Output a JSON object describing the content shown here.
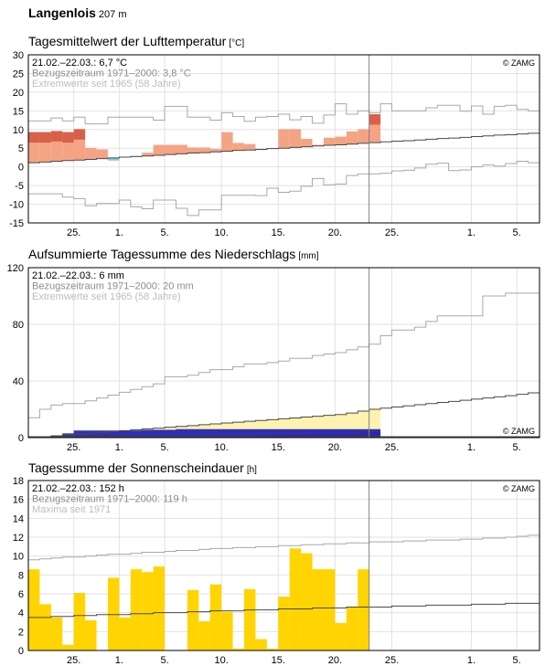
{
  "station": {
    "name": "Langenlois",
    "altitude": "207 m"
  },
  "colors": {
    "frame": "#000000",
    "grid": "#e2e2e2",
    "today": "#808080",
    "extreme": "#a8a8a8",
    "normal": "#4a4a4a",
    "temp_above": "#f4a484",
    "temp_above_strong": "#d8604a",
    "temp_below": "#8cc4dc",
    "precip_norm_fill": "#fdf2b0",
    "precip_norm_line": "#c8b45a",
    "precip_orange": "#f7a040",
    "precip_blue": "#1a1ab4",
    "sun_fill": "#ffd400",
    "legend_dark": "#000000",
    "legend_gray": "#8c8c8c",
    "legend_light": "#bdbdbd"
  },
  "chart_data": [
    {
      "type": "bar",
      "title": "Tagesmittelwert der Lufttemperatur",
      "unit": "[°C]",
      "copyright": "© ZAMG",
      "legend": [
        "21.02.–22.03.: 6,7 °C",
        "Bezugszeitraum 1971–2000: 3,8 °C",
        "Extremwerte seit 1965 (58 Jahre)"
      ],
      "ylim": [
        -15,
        30
      ],
      "yticks": [
        -15,
        -10,
        -5,
        0,
        5,
        10,
        15,
        20,
        25,
        30
      ],
      "days": 45,
      "today_index": 30,
      "xticks": [
        {
          "i": 4,
          "label": "25."
        },
        {
          "i": 8,
          "label": "1."
        },
        {
          "i": 12,
          "label": "5."
        },
        {
          "i": 17,
          "label": "10."
        },
        {
          "i": 22,
          "label": "15."
        },
        {
          "i": 27,
          "label": "20."
        },
        {
          "i": 32,
          "label": "25."
        },
        {
          "i": 39,
          "label": "1."
        },
        {
          "i": 43,
          "label": "5."
        }
      ],
      "values": [
        9.3,
        9.3,
        9.6,
        9.3,
        10.1,
        5.1,
        4.7,
        1.7,
        2.6,
        2.6,
        3.8,
        5.9,
        5.9,
        5.9,
        5.2,
        5.2,
        4.8,
        9.3,
        6.4,
        6.1,
        4.5,
        5.0,
        10.1,
        10.1,
        7.5,
        5.9,
        7.8,
        8.1,
        9.5,
        10.1,
        14.1
      ],
      "normal": [
        1.1,
        1.3,
        1.5,
        1.7,
        1.8,
        2.0,
        2.2,
        2.4,
        2.6,
        2.8,
        2.9,
        3.1,
        3.3,
        3.5,
        3.7,
        3.8,
        4.0,
        4.2,
        4.4,
        4.5,
        4.7,
        4.9,
        5.0,
        5.2,
        5.4,
        5.6,
        5.8,
        5.9,
        6.1,
        6.3,
        6.5,
        6.7,
        6.9,
        7.0,
        7.2,
        7.4,
        7.6,
        7.7,
        7.9,
        8.1,
        8.3,
        8.5,
        8.6,
        8.8,
        9.0
      ],
      "extreme_max": [
        12.3,
        12.3,
        13.1,
        12.3,
        13.3,
        11.5,
        11.5,
        13.3,
        13.3,
        13.3,
        13.3,
        12.5,
        16.2,
        16.2,
        13.3,
        13.3,
        12.5,
        14.5,
        13.5,
        12.2,
        13.3,
        13.5,
        14.1,
        12.6,
        13.5,
        11.7,
        13.9,
        16.9,
        14.1,
        15.0,
        14.5,
        16.9,
        15.0,
        15.0,
        15.0,
        15.8,
        16.5,
        16.5,
        14.9,
        16.3,
        14.1,
        16.2,
        16.5,
        15.4,
        15.0
      ],
      "extreme_min": [
        -7.2,
        -7.2,
        -7.2,
        -8.1,
        -8.5,
        -10.4,
        -9.8,
        -9.8,
        -8.9,
        -10.7,
        -11.2,
        -8.9,
        -8.9,
        -11.1,
        -13.0,
        -11.5,
        -11.5,
        -7.6,
        -7.6,
        -7.6,
        -7.7,
        -5.7,
        -6.8,
        -6.5,
        -5.2,
        -3.1,
        -4.8,
        -4.6,
        -2.3,
        -1.9,
        -1.9,
        -1.7,
        -1.1,
        -0.9,
        -0.3,
        0.7,
        1.0,
        -1.0,
        -0.8,
        0.0,
        0.5,
        0.2,
        0.9,
        1.5,
        1.1
      ]
    },
    {
      "type": "area",
      "title": "Aufsummierte Tagessumme des Niederschlags",
      "unit": "[mm]",
      "copyright": "© ZAMG",
      "legend": [
        "21.02.–22.03.: 6 mm",
        "Bezugszeitraum 1971–2000: 20 mm",
        "Extremwerte seit 1965 (58 Jahre)"
      ],
      "ylim": [
        0,
        120
      ],
      "yticks": [
        0,
        40,
        80,
        120
      ],
      "days": 45,
      "today_index": 30,
      "xticks": [
        {
          "i": 4,
          "label": "25."
        },
        {
          "i": 8,
          "label": "1."
        },
        {
          "i": 12,
          "label": "5."
        },
        {
          "i": 17,
          "label": "10."
        },
        {
          "i": 22,
          "label": "15."
        },
        {
          "i": 27,
          "label": "20."
        },
        {
          "i": 32,
          "label": "25."
        },
        {
          "i": 39,
          "label": "1."
        },
        {
          "i": 43,
          "label": "5."
        }
      ],
      "values": [
        0.0,
        0.5,
        1.5,
        3.0,
        5.0,
        5.0,
        5.0,
        5.0,
        5.0,
        5.0,
        5.5,
        5.5,
        5.5,
        6.0,
        6.0,
        6.0,
        6.0,
        6.0,
        6.0,
        6.0,
        6.0,
        6.0,
        6.0,
        6.0,
        6.0,
        6.0,
        6.0,
        6.0,
        6.0,
        6.0,
        6.0
      ],
      "normal": [
        0.0,
        0.6,
        1.2,
        1.9,
        2.5,
        3.1,
        3.7,
        4.3,
        4.9,
        5.5,
        6.1,
        6.7,
        7.3,
        7.9,
        8.5,
        9.1,
        9.7,
        10.3,
        10.9,
        11.5,
        12.1,
        12.7,
        13.3,
        13.9,
        14.5,
        15.1,
        15.7,
        16.3,
        17.3,
        18.7,
        20.0,
        20.8,
        21.6,
        22.4,
        23.2,
        24.0,
        24.8,
        25.6,
        26.4,
        27.2,
        28.0,
        28.8,
        29.6,
        30.6,
        31.6
      ],
      "orange": [
        0.0,
        0.1,
        0.2,
        0.3,
        0.3,
        0.4,
        0.5,
        0.5,
        0.6,
        0.6,
        0.7,
        0.8,
        0.8,
        0.9,
        1.0,
        1.0,
        1.1,
        1.2,
        1.3,
        1.4,
        1.6,
        1.7,
        1.8,
        2.0,
        2.2,
        2.4,
        2.6,
        2.9,
        3.2,
        3.6,
        4.0
      ],
      "extreme_max": [
        14,
        20,
        23,
        24,
        24,
        26,
        28,
        30,
        32,
        34,
        36,
        38,
        43,
        43,
        44,
        46,
        48,
        48,
        50,
        52,
        52,
        53,
        54,
        56,
        56,
        58,
        59,
        60,
        62,
        64,
        66,
        72,
        76,
        76,
        78,
        82,
        86,
        86,
        86,
        86,
        100,
        100,
        102,
        102,
        102
      ],
      "extreme_min": [
        0.0,
        0.0,
        0.0,
        0.0,
        0.0,
        0.0,
        0.0,
        0.0,
        0.0,
        0.0,
        0.0,
        0.0,
        0.0,
        0.0,
        0.0,
        0.0,
        0.0,
        0.0,
        0.0,
        0.0,
        0.0,
        0.0,
        0.0,
        0.0,
        0.0,
        0.0,
        0.0,
        0.0,
        0.0,
        0.0,
        0.0,
        0.0,
        0.0,
        0.0,
        0.0,
        0.0,
        0.0,
        0.0,
        0.0,
        0.0,
        0.0,
        0.0,
        0.0,
        0.0,
        0.0
      ]
    },
    {
      "type": "bar",
      "title": "Tagessumme der Sonnenscheindauer",
      "unit": "[h]",
      "copyright": "© ZAMG",
      "legend": [
        "21.02.–22.03.: 152 h",
        "Bezugszeitraum 1971–2000: 119 h",
        "Maxima seit 1971"
      ],
      "ylim": [
        0,
        18
      ],
      "yticks": [
        0,
        2,
        4,
        6,
        8,
        10,
        12,
        14,
        16,
        18
      ],
      "days": 45,
      "today_index": 30,
      "xticks": [
        {
          "i": 4,
          "label": "25."
        },
        {
          "i": 8,
          "label": "1."
        },
        {
          "i": 12,
          "label": "5."
        },
        {
          "i": 17,
          "label": "10."
        },
        {
          "i": 22,
          "label": "15."
        },
        {
          "i": 27,
          "label": "20."
        },
        {
          "i": 32,
          "label": "25."
        },
        {
          "i": 39,
          "label": "1."
        },
        {
          "i": 43,
          "label": "5."
        }
      ],
      "values": [
        8.6,
        4.9,
        3.5,
        0.6,
        6.1,
        3.2,
        0.0,
        7.7,
        3.5,
        8.6,
        8.3,
        8.9,
        0.0,
        0.0,
        6.4,
        3.1,
        7.0,
        4.1,
        0.2,
        6.5,
        1.2,
        0.2,
        5.7,
        10.8,
        10.3,
        8.6,
        8.6,
        2.9,
        4.6,
        8.6
      ],
      "normal": [
        3.5,
        3.5,
        3.6,
        3.6,
        3.7,
        3.7,
        3.8,
        3.8,
        3.8,
        3.9,
        3.9,
        4.0,
        4.0,
        4.0,
        4.1,
        4.1,
        4.2,
        4.2,
        4.2,
        4.3,
        4.3,
        4.3,
        4.4,
        4.4,
        4.4,
        4.5,
        4.5,
        4.5,
        4.6,
        4.6,
        4.6,
        4.6,
        4.7,
        4.7,
        4.7,
        4.8,
        4.8,
        4.8,
        4.8,
        4.9,
        4.9,
        4.9,
        5.0,
        5.0,
        5.0
      ],
      "extreme_max": [
        9.6,
        9.7,
        9.8,
        9.9,
        9.9,
        10.0,
        10.1,
        10.2,
        10.2,
        10.3,
        10.4,
        10.4,
        10.5,
        10.6,
        10.6,
        10.7,
        10.8,
        10.8,
        10.9,
        10.9,
        11.0,
        11.0,
        11.1,
        11.1,
        11.2,
        11.2,
        11.3,
        11.3,
        11.4,
        11.4,
        11.5,
        11.5,
        11.5,
        11.6,
        11.6,
        11.7,
        11.7,
        11.7,
        11.8,
        11.8,
        11.9,
        11.9,
        12.0,
        12.1,
        12.2
      ]
    }
  ]
}
